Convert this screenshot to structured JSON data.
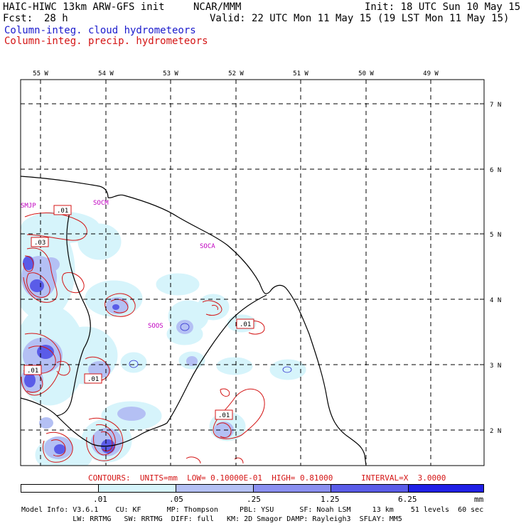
{
  "header": {
    "left_line1": "HAIC-HIWC 13km ARW-GFS init",
    "center_line1": "NCAR/MMM",
    "right_line1": "Init: 18 UTC Sun 10 May 15",
    "fcst_label": "Fcst:",
    "fcst_value": "28 h",
    "valid_line": "Valid: 22 UTC Mon 11 May 15 (19 LST Mon 11 May 15)",
    "legend_cloud": "Column-integ. cloud hydrometeors",
    "legend_precip": "Column-integ. precip. hydrometeors"
  },
  "colors": {
    "cloud_line": "#1a1acc",
    "precip_line": "#d41414",
    "station": "#c000c0",
    "fill_levels": [
      "#ffffff",
      "#d6f4fb",
      "#b4c0f4",
      "#8a8ff0",
      "#5a5ce8",
      "#2020e6"
    ]
  },
  "map": {
    "lon_labels": [
      "55 W",
      "54 W",
      "53 W",
      "52 W",
      "51 W",
      "50 W",
      "49 W"
    ],
    "lat_labels": [
      "7 N",
      "6 N",
      "5 N",
      "4 N",
      "3 N",
      "2 N"
    ],
    "stations": [
      "SMJP",
      "SOCM",
      "SOCA",
      "SOOS"
    ],
    "contour_labels": [
      ".01",
      ".03",
      ".01",
      ".01",
      ".01",
      ".01"
    ]
  },
  "contours_info": {
    "text": "CONTOURS:  UNITS=mm  LOW= 0.10000E-01  HIGH= 0.81000      INTERVAL=X  3.0000"
  },
  "colorbar": {
    "tick_labels": [
      ".01",
      ".05",
      ".25",
      "1.25",
      "6.25"
    ],
    "unit": "mm"
  },
  "footer": {
    "line1": "Model Info: V3.6.1    CU: KF      MP: Thompson     PBL: YSU      SF: Noah LSM     13 km    51 levels  60 sec",
    "line2": "            LW: RRTMG   SW: RRTMG  DIFF: full   KM: 2D Smagor DAMP: Rayleigh3  SFLAY: MM5"
  }
}
